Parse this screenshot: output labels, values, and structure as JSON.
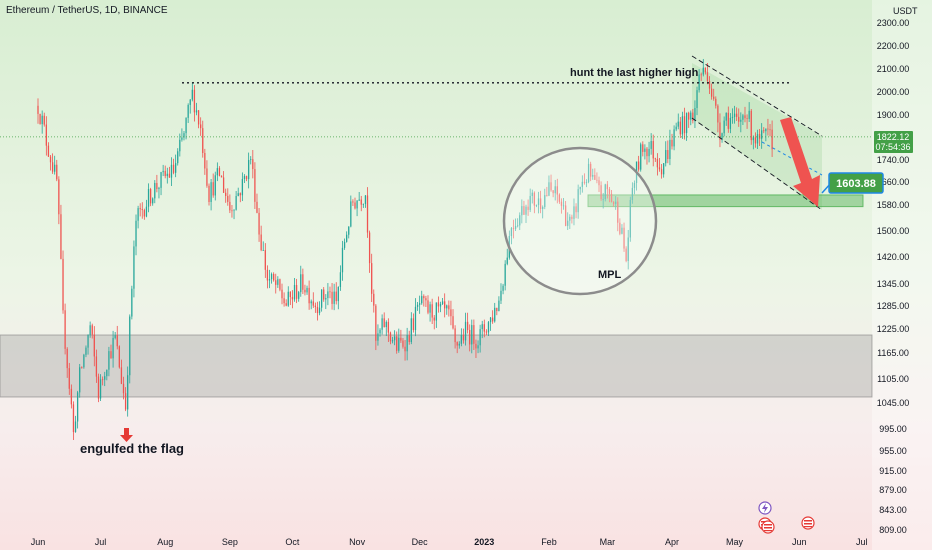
{
  "chart_title": "Ethereum / TetherUS, 1D, BINANCE",
  "currency": "USDT",
  "chart_data": {
    "type": "candlestick",
    "title": "Ethereum / TetherUS, 1D, BINANCE",
    "y_unit": "USDT",
    "ylim": [
      809,
      2300
    ],
    "y_ticks": [
      "2300.00",
      "2200.00",
      "2100.00",
      "2000.00",
      "1900.00",
      "1740.00",
      "1660.00",
      "1580.00",
      "1500.00",
      "1420.00",
      "1345.00",
      "1285.00",
      "1225.00",
      "1165.00",
      "1105.00",
      "1045.00",
      "995.00",
      "955.00",
      "915.00",
      "879.00",
      "843.00",
      "809.00"
    ],
    "x_ticks": [
      "Jun",
      "Jul",
      "Aug",
      "Sep",
      "Oct",
      "Nov",
      "Dec",
      "2023",
      "Feb",
      "Mar",
      "Apr",
      "May",
      "Jun",
      "Jul"
    ],
    "last_price": "1822.12",
    "countdown": "07:54:36",
    "target_price": "1603.88",
    "price_path": [
      [
        "2022-06-01",
        1940
      ],
      [
        "2022-06-05",
        1810
      ],
      [
        "2022-06-10",
        1660
      ],
      [
        "2022-06-13",
        1250
      ],
      [
        "2022-06-16",
        1090
      ],
      [
        "2022-06-18",
        985
      ],
      [
        "2022-06-21",
        1110
      ],
      [
        "2022-06-26",
        1230
      ],
      [
        "2022-06-30",
        1070
      ],
      [
        "2022-07-04",
        1150
      ],
      [
        "2022-07-08",
        1200
      ],
      [
        "2022-07-13",
        1040
      ],
      [
        "2022-07-18",
        1530
      ],
      [
        "2022-07-22",
        1580
      ],
      [
        "2022-07-27",
        1640
      ],
      [
        "2022-08-01",
        1680
      ],
      [
        "2022-08-05",
        1700
      ],
      [
        "2022-08-10",
        1830
      ],
      [
        "2022-08-14",
        1990
      ],
      [
        "2022-08-18",
        1850
      ],
      [
        "2022-08-22",
        1620
      ],
      [
        "2022-08-27",
        1690
      ],
      [
        "2022-09-01",
        1570
      ],
      [
        "2022-09-07",
        1650
      ],
      [
        "2022-09-11",
        1750
      ],
      [
        "2022-09-15",
        1500
      ],
      [
        "2022-09-19",
        1360
      ],
      [
        "2022-09-23",
        1340
      ],
      [
        "2022-09-28",
        1290
      ],
      [
        "2022-10-02",
        1320
      ],
      [
        "2022-10-06",
        1350
      ],
      [
        "2022-10-12",
        1290
      ],
      [
        "2022-10-18",
        1320
      ],
      [
        "2022-10-22",
        1290
      ],
      [
        "2022-10-26",
        1470
      ],
      [
        "2022-10-30",
        1590
      ],
      [
        "2022-11-05",
        1620
      ],
      [
        "2022-11-08",
        1330
      ],
      [
        "2022-11-10",
        1190
      ],
      [
        "2022-11-14",
        1240
      ],
      [
        "2022-11-20",
        1180
      ],
      [
        "2022-11-25",
        1200
      ],
      [
        "2022-12-01",
        1290
      ],
      [
        "2022-12-06",
        1270
      ],
      [
        "2022-12-12",
        1270
      ],
      [
        "2022-12-15",
        1260
      ],
      [
        "2022-12-18",
        1180
      ],
      [
        "2022-12-23",
        1220
      ],
      [
        "2022-12-29",
        1200
      ],
      [
        "2023-01-04",
        1250
      ],
      [
        "2023-01-08",
        1300
      ],
      [
        "2023-01-11",
        1400
      ],
      [
        "2023-01-14",
        1520
      ],
      [
        "2023-01-18",
        1550
      ],
      [
        "2023-01-22",
        1600
      ],
      [
        "2023-01-27",
        1590
      ],
      [
        "2023-02-01",
        1630
      ],
      [
        "2023-02-05",
        1610
      ],
      [
        "2023-02-09",
        1550
      ],
      [
        "2023-02-12",
        1510
      ],
      [
        "2023-02-16",
        1650
      ],
      [
        "2023-02-20",
        1690
      ],
      [
        "2023-02-26",
        1610
      ],
      [
        "2023-03-01",
        1630
      ],
      [
        "2023-03-06",
        1560
      ],
      [
        "2023-03-10",
        1410
      ],
      [
        "2023-03-13",
        1640
      ],
      [
        "2023-03-18",
        1790
      ],
      [
        "2023-03-22",
        1780
      ],
      [
        "2023-03-27",
        1720
      ],
      [
        "2023-03-31",
        1790
      ],
      [
        "2023-04-04",
        1870
      ],
      [
        "2023-04-08",
        1870
      ],
      [
        "2023-04-12",
        1920
      ],
      [
        "2023-04-14",
        2080
      ],
      [
        "2023-04-18",
        2090
      ],
      [
        "2023-04-21",
        1950
      ],
      [
        "2023-04-24",
        1850
      ],
      [
        "2023-04-27",
        1900
      ],
      [
        "2023-04-30",
        1880
      ],
      [
        "2023-05-03",
        1860
      ],
      [
        "2023-05-06",
        1930
      ],
      [
        "2023-05-09",
        1850
      ],
      [
        "2023-05-12",
        1800
      ],
      [
        "2023-05-16",
        1820
      ],
      [
        "2023-05-19",
        1810
      ]
    ],
    "annotations": {
      "flag_label": "engulfed the flag",
      "high_label": "hunt the last higher high",
      "mpl_label": "MPL",
      "resistance_level": 2040,
      "demand_zone": [
        1060,
        1210
      ],
      "target_zone": [
        1575,
        1615
      ]
    }
  }
}
